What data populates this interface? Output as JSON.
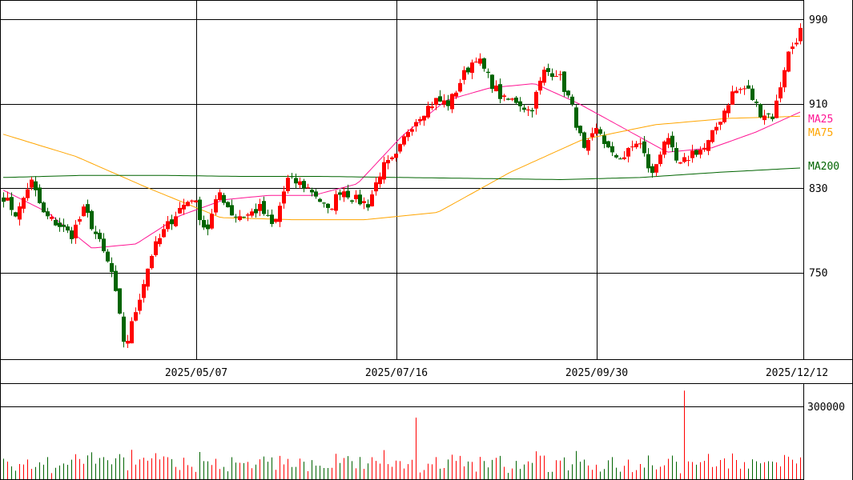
{
  "chart_data": {
    "type": "candlestick",
    "price_axis": {
      "ticks": [
        990,
        910,
        830,
        750
      ],
      "ylim": [
        672,
        1008
      ]
    },
    "x_tick_labels": [
      "2025/05/07",
      "2025/07/16",
      "2025/09/30",
      "2025/12/12"
    ],
    "close_keypoints": [
      822,
      804,
      838,
      804,
      796,
      785,
      810,
      781,
      750,
      678,
      724,
      769,
      792,
      810,
      822,
      788,
      826,
      804,
      804,
      811,
      792,
      838,
      834,
      826,
      807,
      830,
      819,
      815,
      849,
      857,
      887,
      902,
      913,
      910,
      936,
      955,
      932,
      913,
      913,
      902,
      940,
      940,
      910,
      864,
      887,
      860,
      860,
      876,
      841,
      879,
      849,
      864,
      868,
      894,
      921,
      925,
      902,
      898,
      955,
      979
    ],
    "moving_averages": [
      {
        "name": "MA25",
        "color": "#ff1493",
        "keypoints": [
          828,
          807,
          773,
          777,
          804,
          819,
          823,
          823,
          834,
          879,
          913,
          925,
          929,
          910,
          887,
          864,
          868,
          883,
          902
        ]
      },
      {
        "name": "MA75",
        "color": "#ffa500",
        "keypoints": [
          881,
          860,
          830,
          802,
          800,
          800,
          807,
          845,
          876,
          890,
          896,
          898
        ]
      },
      {
        "name": "MA200",
        "color": "#006400",
        "keypoints": [
          840,
          842,
          842,
          841,
          841,
          840,
          839,
          838,
          840,
          845,
          849
        ]
      }
    ],
    "volume_axis": {
      "ticks": [
        300000
      ],
      "ylim": [
        0,
        390000
      ]
    },
    "volume_spikes": [
      {
        "label": "peak",
        "value": 365000
      },
      {
        "label": "secondary",
        "value": 254000
      }
    ],
    "colors": {
      "up": "#ff0000",
      "down": "#006400",
      "grid": "#000000"
    }
  }
}
